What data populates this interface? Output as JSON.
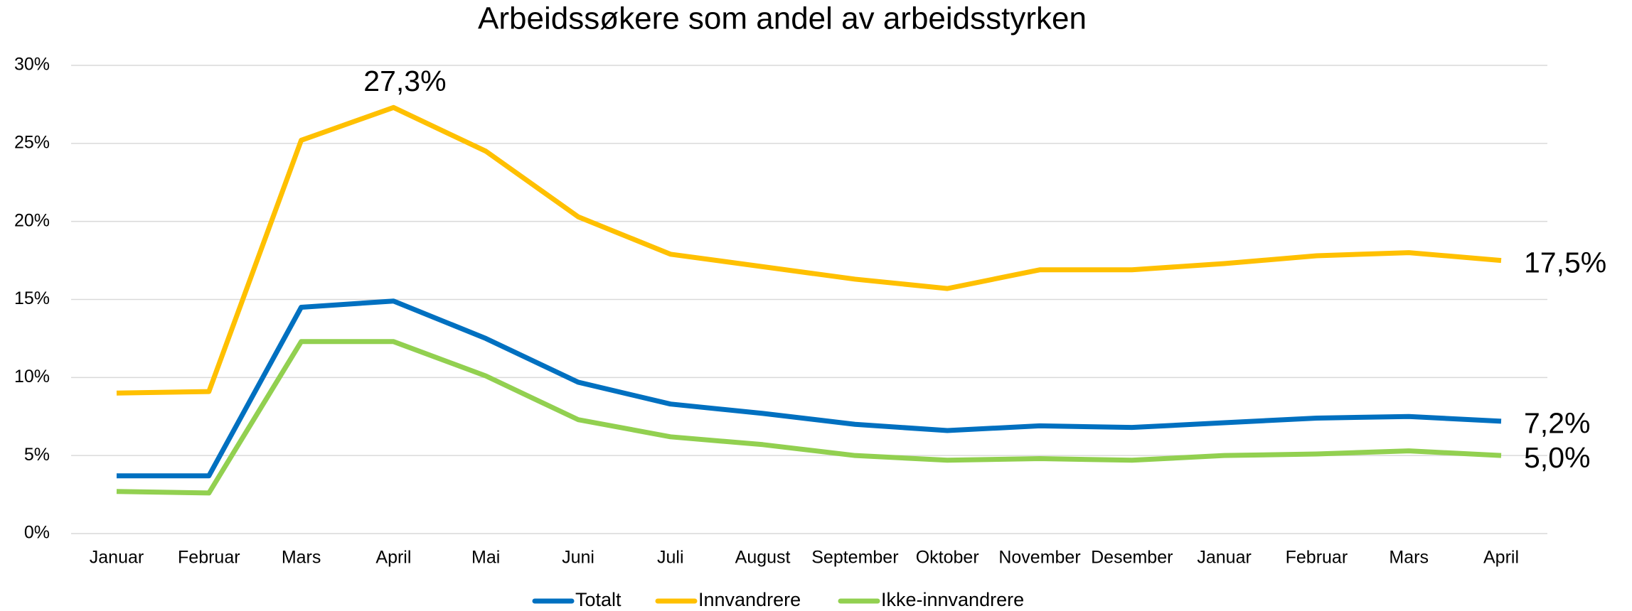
{
  "chart_data": {
    "type": "line",
    "title": "Arbeidssøkere som andel av arbeidsstyrken",
    "categories": [
      "Januar",
      "Februar",
      "Mars",
      "April",
      "Mai",
      "Juni",
      "Juli",
      "August",
      "September",
      "Oktober",
      "November",
      "Desember",
      "Januar",
      "Februar",
      "Mars",
      "April"
    ],
    "series": [
      {
        "name": "Totalt",
        "color": "#0070c0",
        "values": [
          3.7,
          3.7,
          14.5,
          14.9,
          12.5,
          9.7,
          8.3,
          7.7,
          7.0,
          6.6,
          6.9,
          6.8,
          7.1,
          7.4,
          7.5,
          7.2
        ],
        "value_labels": [
          null,
          null,
          null,
          null,
          null,
          null,
          null,
          null,
          null,
          null,
          null,
          null,
          null,
          null,
          null,
          "7,2%"
        ]
      },
      {
        "name": "Innvandrere",
        "color": "#ffc000",
        "values": [
          9.0,
          9.1,
          25.2,
          27.3,
          24.5,
          20.3,
          17.9,
          17.1,
          16.3,
          15.7,
          16.9,
          16.9,
          17.3,
          17.8,
          18.0,
          17.5
        ],
        "value_labels": [
          null,
          null,
          null,
          "27,3%",
          null,
          null,
          null,
          null,
          null,
          null,
          null,
          null,
          null,
          null,
          null,
          "17,5%"
        ]
      },
      {
        "name": "Ikke-innvandrere",
        "color": "#92d050",
        "values": [
          2.7,
          2.6,
          12.3,
          12.3,
          10.1,
          7.3,
          6.2,
          5.7,
          5.0,
          4.7,
          4.8,
          4.7,
          5.0,
          5.1,
          5.3,
          5.0
        ],
        "value_labels": [
          null,
          null,
          null,
          null,
          null,
          null,
          null,
          null,
          null,
          null,
          null,
          null,
          null,
          null,
          null,
          "5,0%"
        ]
      }
    ],
    "ylim": [
      0,
      30
    ],
    "yticks": [
      {
        "value": 0,
        "label": "0%"
      },
      {
        "value": 5,
        "label": "5%"
      },
      {
        "value": 10,
        "label": "10%"
      },
      {
        "value": 15,
        "label": "15%"
      },
      {
        "value": 20,
        "label": "20%"
      },
      {
        "value": 25,
        "label": "25%"
      },
      {
        "value": 30,
        "label": "30%"
      }
    ],
    "grid": true,
    "legend": "bottom"
  }
}
